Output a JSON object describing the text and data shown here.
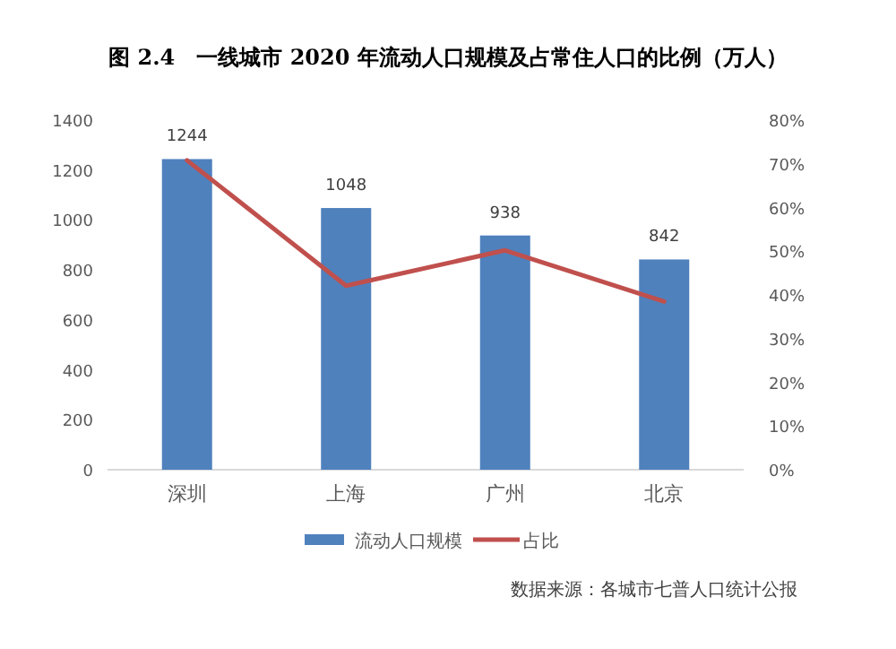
{
  "chart_data": {
    "type": "bar",
    "title": "图 2.4　一线城市 2020 年流动人口规模及占常住人口的比例（万人）",
    "categories": [
      "深圳",
      "上海",
      "广州",
      "北京"
    ],
    "series": [
      {
        "name": "流动人口规模",
        "color": "#4f81bd",
        "values": [
          1244,
          1048,
          938,
          842
        ],
        "value_labels": [
          "1244",
          "1048",
          "938",
          "842"
        ]
      },
      {
        "name": "占比",
        "type": "line",
        "axis": "y2",
        "color": "#c0504d",
        "values": [
          70.8,
          42.1,
          50.2,
          38.5
        ]
      }
    ],
    "ylim": [
      0,
      1400
    ],
    "yticks": [
      0,
      200,
      400,
      600,
      800,
      1000,
      1200,
      1400
    ],
    "y2lim": [
      0,
      80
    ],
    "y2ticks": [
      {
        "value": 0,
        "label": "0%"
      },
      {
        "value": 10,
        "label": "10%"
      },
      {
        "value": 20,
        "label": "20%"
      },
      {
        "value": 30,
        "label": "30%"
      },
      {
        "value": 40,
        "label": "40%"
      },
      {
        "value": 50,
        "label": "50%"
      },
      {
        "value": 60,
        "label": "60%"
      },
      {
        "value": 70,
        "label": "70%"
      },
      {
        "value": 80,
        "label": "80%"
      }
    ],
    "legend": "bottom",
    "grid": false,
    "annotations": [
      "数据来源：各城市七普人口统计公报"
    ]
  }
}
